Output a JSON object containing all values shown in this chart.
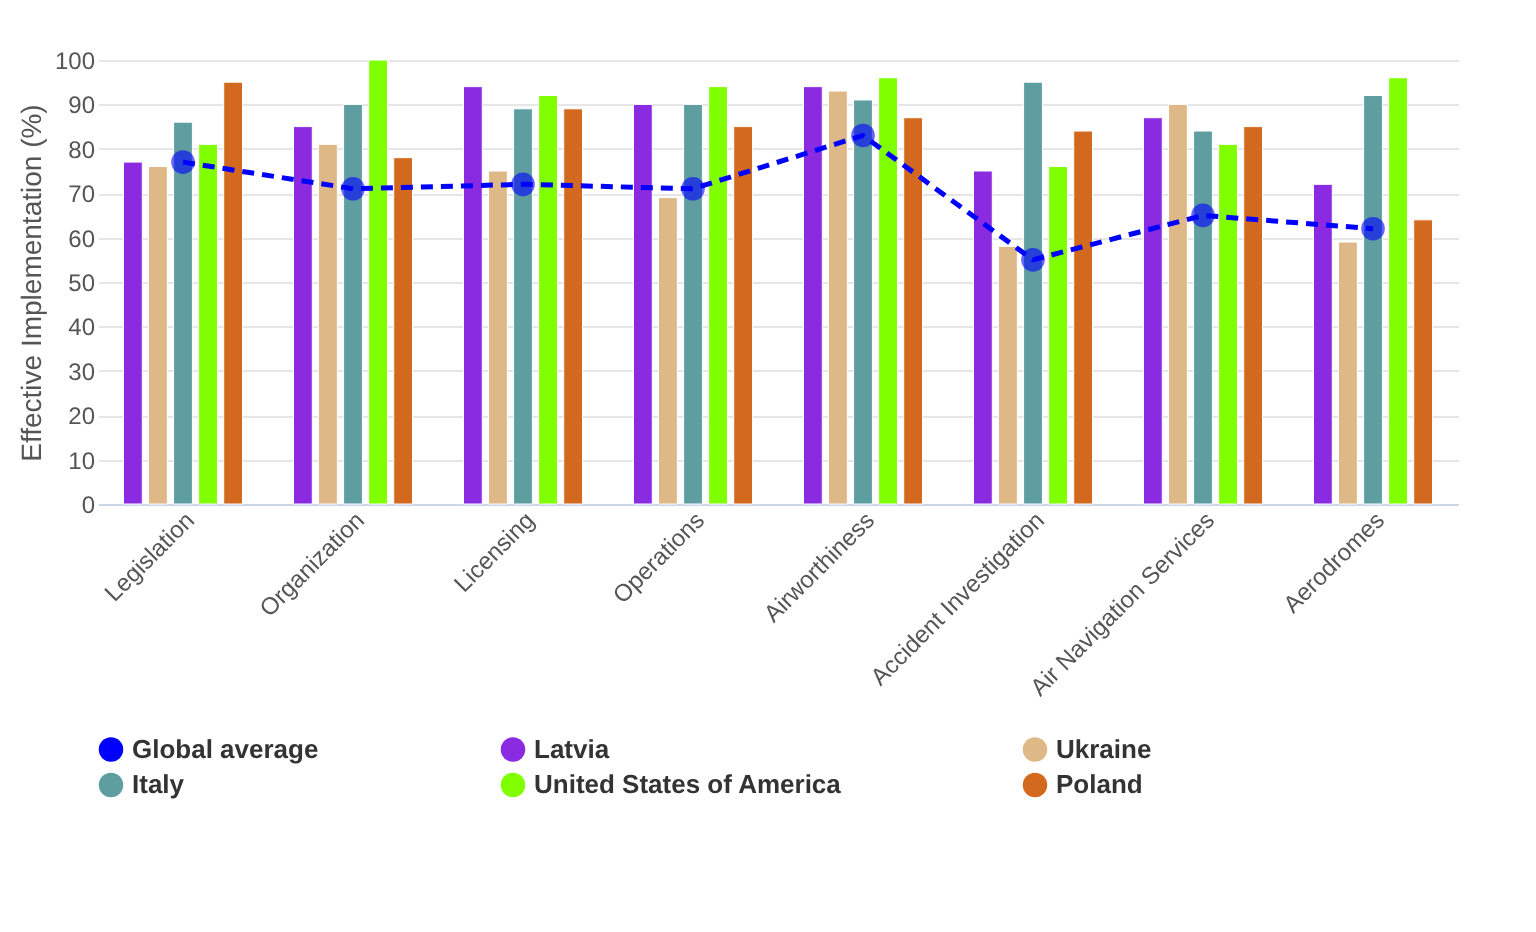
{
  "chart_data": {
    "type": "bar",
    "ylabel": "Effective Implementation (%)",
    "categories": [
      "Legislation",
      "Organization",
      "Licensing",
      "Operations",
      "Airworthiness",
      "Accident Investigation",
      "Air Navigation Services",
      "Aerodromes"
    ],
    "series": [
      {
        "name": "Global average",
        "type": "line",
        "color": "#0000ff",
        "line_style": "dashed",
        "marker": "circle",
        "values": [
          77,
          71,
          72,
          71,
          83,
          55,
          65,
          62
        ]
      },
      {
        "name": "Latvia",
        "color": "#8a2be2",
        "values": [
          77,
          85,
          94,
          90,
          94,
          75,
          87,
          72
        ]
      },
      {
        "name": "Ukraine",
        "color": "#deb887",
        "values": [
          76,
          81,
          75,
          69,
          93,
          58,
          90,
          59
        ]
      },
      {
        "name": "Italy",
        "color": "#5f9ea0",
        "values": [
          86,
          90,
          89,
          90,
          91,
          95,
          84,
          92
        ]
      },
      {
        "name": "United States of America",
        "color": "#7fff00",
        "values": [
          81,
          100,
          92,
          94,
          96,
          76,
          81,
          96
        ]
      },
      {
        "name": "Poland",
        "color": "#d2691e",
        "values": [
          95,
          78,
          89,
          85,
          87,
          84,
          85,
          64
        ]
      }
    ],
    "ylim": [
      0,
      100
    ],
    "yticks": [
      0,
      10,
      20,
      30,
      40,
      50,
      60,
      70,
      80,
      90,
      100
    ],
    "grid": "y",
    "legend": "bottom"
  }
}
